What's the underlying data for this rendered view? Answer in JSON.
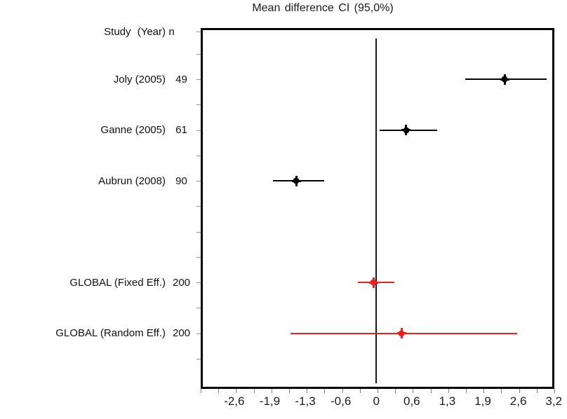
{
  "title": "Mean difference CI (95,0%)",
  "header": {
    "study": "Study (Year)",
    "n": "n"
  },
  "colors": {
    "study_series": "#000000",
    "global_series": "#e8231f",
    "axis_line": "#000000",
    "minor_tick": "#858585",
    "text": "#141414"
  },
  "chart_data": {
    "type": "forest",
    "title": "Mean difference CI (95,0%)",
    "xlabel": "",
    "ylabel": "",
    "x_axis": {
      "tick_labels": [
        "-2,6",
        "-1,9",
        "-1,3",
        "-0,6",
        "0",
        "0,6",
        "1,3",
        "1,9",
        "2,6",
        "3,2"
      ],
      "tick_values": [
        -2.58,
        -1.935,
        -1.29,
        -0.645,
        0,
        0.645,
        1.29,
        1.935,
        2.58,
        3.225
      ],
      "range": [
        -3.19,
        3.235
      ],
      "reference_line": 0
    },
    "legend_position": "none",
    "grid": false,
    "rows": [
      {
        "label": "Joly (2005)",
        "n": "49",
        "mean": 2.33,
        "ci_low": 1.62,
        "ci_high": 3.1,
        "color": "#000000"
      },
      {
        "label": "Ganne (2005)",
        "n": "61",
        "mean": 0.54,
        "ci_low": 0.06,
        "ci_high": 1.1,
        "color": "#000000"
      },
      {
        "label": "Aubrun (2008)",
        "n": "90",
        "mean": -1.45,
        "ci_low": -1.88,
        "ci_high": -0.94,
        "color": "#000000"
      },
      {
        "label": "",
        "n": "",
        "mean": null,
        "ci_low": null,
        "ci_high": null,
        "color": null
      },
      {
        "label": "GLOBAL (Fixed Eff.)",
        "n": "200",
        "mean": -0.05,
        "ci_low": -0.33,
        "ci_high": 0.33,
        "color": "#e8231f"
      },
      {
        "label": "GLOBAL (Random Eff.)",
        "n": "200",
        "mean": 0.46,
        "ci_low": -1.56,
        "ci_high": 2.56,
        "color": "#e8231f"
      }
    ]
  }
}
